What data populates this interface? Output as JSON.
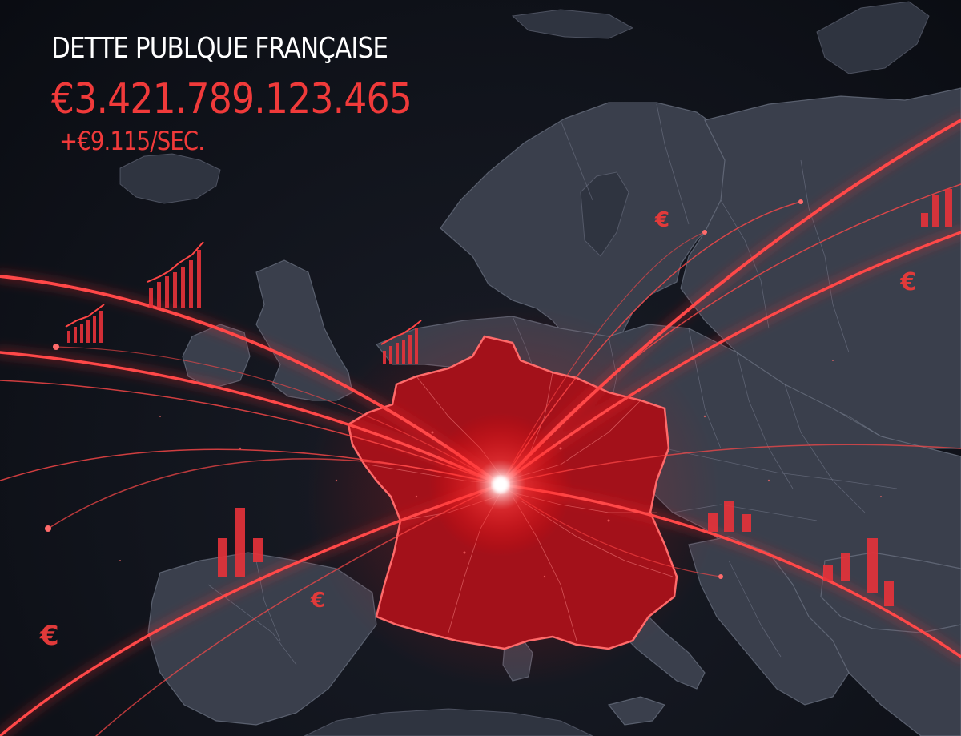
{
  "counter": {
    "title": "DETTE PUBLQUE FRANÇAISE",
    "amount": "€3.421.789.123.465",
    "rate": "+€9.115/SEC."
  },
  "icons": {
    "currency_symbol": "€",
    "chart_icons": [
      "bar-chart-icon",
      "trend-chart-icon"
    ]
  },
  "colors": {
    "accent": "#f03a3a",
    "highlight_country": "#a3111a",
    "land": "#3a3f4c",
    "background": "#0d1017"
  }
}
